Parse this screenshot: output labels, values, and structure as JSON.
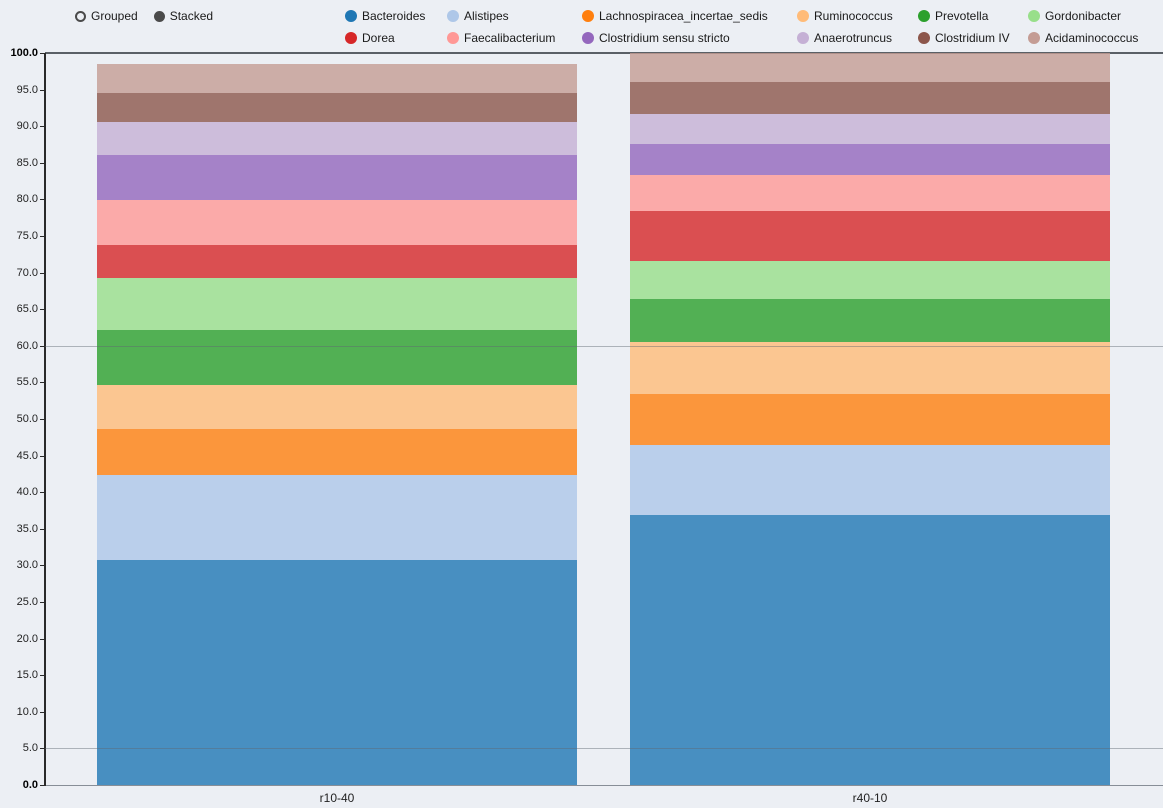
{
  "controls": {
    "grouped_label": "Grouped",
    "stacked_label": "Stacked",
    "selected": "Stacked"
  },
  "chart_data": {
    "type": "bar",
    "mode": "stacked",
    "orientation": "vertical",
    "categories": [
      "r10-40",
      "r40-10"
    ],
    "series": [
      {
        "name": "Bacteroides",
        "color": "#1f77b4",
        "values": [
          30.7,
          36.9
        ]
      },
      {
        "name": "Alistipes",
        "color": "#aec7e8",
        "values": [
          11.6,
          9.5
        ]
      },
      {
        "name": "Lachnospiracea_incertae_sedis",
        "color": "#ff7f0e",
        "values": [
          6.3,
          7.0
        ]
      },
      {
        "name": "Ruminococcus",
        "color": "#ffbb78",
        "values": [
          6.1,
          7.1
        ]
      },
      {
        "name": "Prevotella",
        "color": "#2ca02c",
        "values": [
          7.5,
          5.9
        ]
      },
      {
        "name": "Gordonibacter",
        "color": "#98df8a",
        "values": [
          7.1,
          5.2
        ]
      },
      {
        "name": "Dorea",
        "color": "#d62728",
        "values": [
          4.5,
          6.8
        ]
      },
      {
        "name": "Faecalibacterium",
        "color": "#ff9896",
        "values": [
          6.1,
          5.0
        ]
      },
      {
        "name": "Clostridium sensu stricto",
        "color": "#9467bd",
        "values": [
          6.2,
          4.2
        ]
      },
      {
        "name": "Anaerotruncus",
        "color": "#c5b0d5",
        "values": [
          4.5,
          4.1
        ]
      },
      {
        "name": "Clostridium IV",
        "color": "#8c564b",
        "values": [
          3.9,
          4.3
        ]
      },
      {
        "name": "Acidaminococcus",
        "color": "#c49c94",
        "values": [
          4.0,
          4.0
        ]
      }
    ],
    "ylim": [
      0,
      100
    ],
    "ytick_step": 5,
    "ytick_decimals": 1,
    "reference_lines_at": [
      5,
      60
    ],
    "legend_position": "top",
    "background_color": "#eceff4"
  }
}
